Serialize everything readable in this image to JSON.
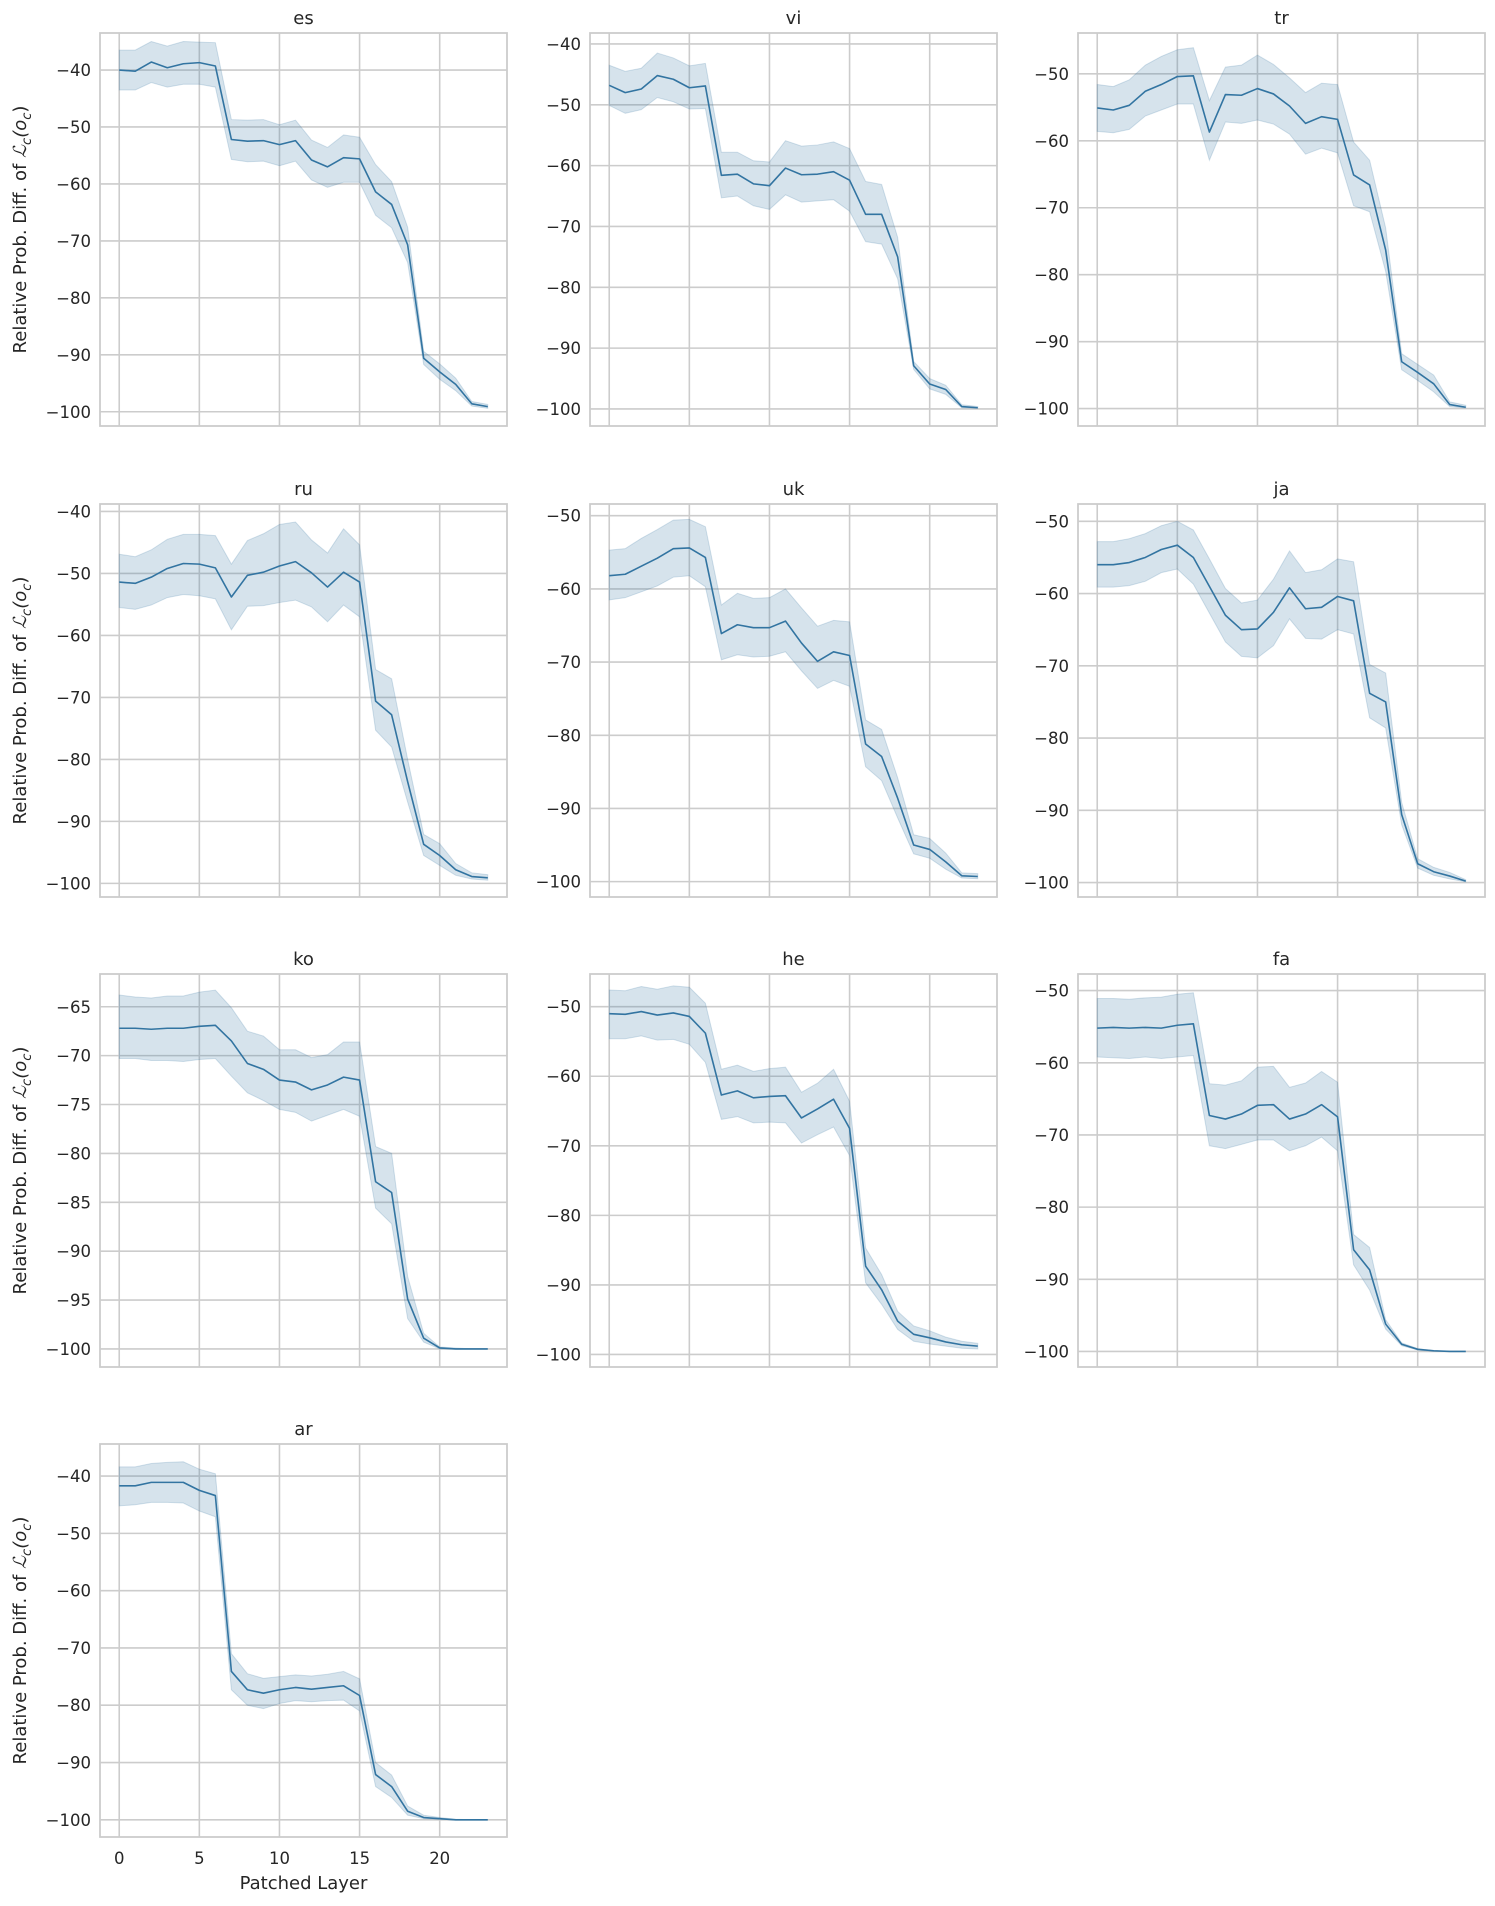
{
  "figure": {
    "xlabel": "Patched Layer",
    "ylabel_text": "Relative Prob. Diff. of ",
    "ylabel_math": "ℒ",
    "ylabel_sub": "c",
    "ylabel_arg_open": "(o",
    "ylabel_arg_sub": "c",
    "ylabel_arg_close": ")",
    "line_color": "#3274a1",
    "band_color": "#3274a1",
    "grid_color": "#cccccc",
    "sharex": true,
    "xlim": [
      -1.2,
      24.2
    ],
    "xticks": [
      0,
      5,
      10,
      15,
      20
    ]
  },
  "chart_data": [
    {
      "type": "line",
      "title": "es",
      "ylim": [
        -102.5,
        -33.5
      ],
      "yticks": [
        -100,
        -90,
        -80,
        -70,
        -60,
        -50,
        -40
      ],
      "x": [
        0,
        1,
        2,
        3,
        4,
        5,
        6,
        7,
        8,
        9,
        10,
        11,
        12,
        13,
        14,
        15,
        16,
        17,
        18,
        19,
        20,
        21,
        22,
        23
      ],
      "values": [
        -40.0,
        -40.2,
        -38.6,
        -39.6,
        -38.9,
        -38.7,
        -39.3,
        -52.2,
        -52.5,
        -52.4,
        -53.1,
        -52.4,
        -55.8,
        -57.0,
        -55.4,
        -55.6,
        -61.4,
        -63.6,
        -70.7,
        -90.6,
        -93.0,
        -95.2,
        -98.6,
        -99.1
      ],
      "ci_upper": [
        -36.5,
        -36.5,
        -35.0,
        -35.8,
        -35.0,
        -35.1,
        -35.2,
        -48.7,
        -48.8,
        -48.7,
        -49.6,
        -48.8,
        -52.3,
        -53.6,
        -51.4,
        -51.8,
        -56.6,
        -59.6,
        -67.6,
        -89.4,
        -91.6,
        -94.1,
        -98.2,
        -98.7
      ],
      "ci_lower": [
        -43.5,
        -43.5,
        -42.2,
        -43.0,
        -42.5,
        -42.5,
        -43.0,
        -55.7,
        -56.1,
        -56.0,
        -56.8,
        -56.0,
        -59.3,
        -60.6,
        -59.7,
        -59.7,
        -65.5,
        -67.7,
        -73.8,
        -91.7,
        -94.3,
        -96.3,
        -99.0,
        -99.4
      ]
    },
    {
      "type": "line",
      "title": "vi",
      "ylim": [
        -102.8,
        -38.2
      ],
      "yticks": [
        -100,
        -90,
        -80,
        -70,
        -60,
        -50,
        -40
      ],
      "x": [
        0,
        1,
        2,
        3,
        4,
        5,
        6,
        7,
        8,
        9,
        10,
        11,
        12,
        13,
        14,
        15,
        16,
        17,
        18,
        19,
        20,
        21,
        22,
        23
      ],
      "values": [
        -46.8,
        -48.0,
        -47.4,
        -45.2,
        -45.8,
        -47.2,
        -46.9,
        -61.6,
        -61.4,
        -63.0,
        -63.3,
        -60.4,
        -61.5,
        -61.4,
        -61.0,
        -62.4,
        -68.0,
        -68.0,
        -75.0,
        -92.9,
        -95.9,
        -96.8,
        -99.6,
        -99.8
      ],
      "ci_upper": [
        -43.5,
        -44.5,
        -44.0,
        -41.5,
        -42.3,
        -43.6,
        -43.2,
        -57.8,
        -57.8,
        -59.2,
        -59.4,
        -55.9,
        -56.8,
        -56.6,
        -56.1,
        -57.2,
        -62.6,
        -63.1,
        -71.8,
        -92.2,
        -95.0,
        -96.1,
        -99.3,
        -99.6
      ],
      "ci_lower": [
        -50.1,
        -51.4,
        -50.8,
        -48.8,
        -49.5,
        -50.7,
        -50.6,
        -65.3,
        -65.0,
        -66.6,
        -67.2,
        -64.8,
        -66.0,
        -65.8,
        -65.6,
        -67.5,
        -72.5,
        -72.9,
        -78.6,
        -93.5,
        -96.7,
        -97.6,
        -99.8,
        -99.9
      ]
    },
    {
      "type": "line",
      "title": "tr",
      "ylim": [
        -102.6,
        -43.9
      ],
      "yticks": [
        -100,
        -90,
        -80,
        -70,
        -60,
        -50
      ],
      "x": [
        0,
        1,
        2,
        3,
        4,
        5,
        6,
        7,
        8,
        9,
        10,
        11,
        12,
        13,
        14,
        15,
        16,
        17,
        18,
        19,
        20,
        21,
        22,
        23
      ],
      "values": [
        -55.1,
        -55.4,
        -54.7,
        -52.6,
        -51.6,
        -50.4,
        -50.3,
        -58.7,
        -53.1,
        -53.2,
        -52.2,
        -53.0,
        -54.8,
        -57.4,
        -56.4,
        -56.8,
        -65.1,
        -66.6,
        -76.3,
        -93.0,
        -94.6,
        -96.3,
        -99.4,
        -99.8
      ],
      "ci_upper": [
        -51.6,
        -51.9,
        -50.9,
        -48.7,
        -47.4,
        -46.4,
        -46.1,
        -54.0,
        -49.0,
        -48.7,
        -47.2,
        -48.6,
        -50.6,
        -52.8,
        -51.4,
        -51.6,
        -60.2,
        -62.9,
        -73.0,
        -91.8,
        -93.4,
        -95.0,
        -99.0,
        -99.5
      ],
      "ci_lower": [
        -58.6,
        -58.8,
        -58.3,
        -56.3,
        -55.4,
        -54.5,
        -54.5,
        -62.9,
        -57.2,
        -57.4,
        -56.9,
        -57.5,
        -59.0,
        -62.0,
        -61.1,
        -61.8,
        -69.7,
        -70.6,
        -79.5,
        -94.2,
        -95.8,
        -97.5,
        -99.7,
        -99.9
      ]
    },
    {
      "type": "line",
      "title": "ru",
      "ylim": [
        -102.2,
        -38.8
      ],
      "yticks": [
        -100,
        -90,
        -80,
        -70,
        -60,
        -50,
        -40
      ],
      "x": [
        0,
        1,
        2,
        3,
        4,
        5,
        6,
        7,
        8,
        9,
        10,
        11,
        12,
        13,
        14,
        15,
        16,
        17,
        18,
        19,
        20,
        21,
        22,
        23
      ],
      "values": [
        -51.4,
        -51.6,
        -50.6,
        -49.2,
        -48.4,
        -48.5,
        -49.1,
        -53.8,
        -50.3,
        -49.8,
        -48.8,
        -48.1,
        -49.9,
        -52.2,
        -49.8,
        -51.4,
        -70.6,
        -72.8,
        -83.6,
        -93.7,
        -95.5,
        -97.8,
        -98.9,
        -99.1
      ],
      "ci_upper": [
        -46.9,
        -47.3,
        -46.2,
        -44.5,
        -43.7,
        -43.7,
        -43.9,
        -48.5,
        -44.7,
        -43.6,
        -42.1,
        -41.7,
        -44.6,
        -46.7,
        -42.8,
        -45.4,
        -65.5,
        -67.0,
        -80.0,
        -92.1,
        -93.6,
        -96.8,
        -98.3,
        -98.6
      ],
      "ci_lower": [
        -55.5,
        -55.8,
        -55.1,
        -53.9,
        -53.4,
        -53.6,
        -54.1,
        -59.1,
        -55.3,
        -55.2,
        -54.7,
        -54.3,
        -55.4,
        -57.8,
        -55.1,
        -57.0,
        -75.3,
        -78.0,
        -86.9,
        -95.5,
        -97.1,
        -98.7,
        -99.3,
        -99.5
      ]
    },
    {
      "type": "line",
      "title": "uk",
      "ylim": [
        -102.1,
        -48.4
      ],
      "yticks": [
        -100,
        -90,
        -80,
        -70,
        -60,
        -50
      ],
      "x": [
        0,
        1,
        2,
        3,
        4,
        5,
        6,
        7,
        8,
        9,
        10,
        11,
        12,
        13,
        14,
        15,
        16,
        17,
        18,
        19,
        20,
        21,
        22,
        23
      ],
      "values": [
        -58.2,
        -58.0,
        -56.9,
        -55.8,
        -54.5,
        -54.4,
        -55.7,
        -66.1,
        -64.9,
        -65.3,
        -65.3,
        -64.4,
        -67.4,
        -69.9,
        -68.6,
        -69.1,
        -81.2,
        -82.9,
        -88.6,
        -95.0,
        -95.6,
        -97.3,
        -99.2,
        -99.3
      ],
      "ci_upper": [
        -54.7,
        -54.5,
        -53.1,
        -51.9,
        -50.6,
        -50.5,
        -51.5,
        -62.2,
        -60.6,
        -61.3,
        -61.2,
        -60.0,
        -62.6,
        -65.1,
        -64.3,
        -64.5,
        -77.9,
        -79.2,
        -85.8,
        -93.6,
        -94.1,
        -96.1,
        -98.8,
        -98.9
      ],
      "ci_lower": [
        -61.5,
        -61.2,
        -60.4,
        -59.6,
        -58.4,
        -58.2,
        -59.7,
        -69.7,
        -69.0,
        -69.3,
        -69.2,
        -68.6,
        -71.2,
        -73.6,
        -72.5,
        -73.3,
        -84.3,
        -86.2,
        -91.3,
        -96.2,
        -96.8,
        -98.3,
        -99.5,
        -99.6
      ]
    },
    {
      "type": "line",
      "title": "ja",
      "ylim": [
        -102.0,
        -47.6
      ],
      "yticks": [
        -100,
        -90,
        -80,
        -70,
        -60,
        -50
      ],
      "x": [
        0,
        1,
        2,
        3,
        4,
        5,
        6,
        7,
        8,
        9,
        10,
        11,
        12,
        13,
        14,
        15,
        16,
        17,
        18,
        19,
        20,
        21,
        22,
        23
      ],
      "values": [
        -56.0,
        -56.0,
        -55.7,
        -55.0,
        -53.9,
        -53.3,
        -55.0,
        -59.0,
        -63.0,
        -65.0,
        -64.9,
        -62.6,
        -59.2,
        -62.1,
        -61.9,
        -60.4,
        -61.0,
        -73.8,
        -75.0,
        -90.6,
        -97.4,
        -98.5,
        -99.1,
        -99.8
      ],
      "ci_upper": [
        -52.8,
        -52.8,
        -52.4,
        -51.7,
        -50.6,
        -50.0,
        -51.2,
        -55.2,
        -59.3,
        -61.3,
        -60.9,
        -58.0,
        -54.1,
        -57.1,
        -56.7,
        -55.2,
        -55.6,
        -69.8,
        -71.0,
        -88.9,
        -96.7,
        -97.9,
        -98.6,
        -99.6
      ],
      "ci_lower": [
        -59.1,
        -59.1,
        -58.9,
        -58.3,
        -57.1,
        -56.6,
        -58.7,
        -62.7,
        -66.7,
        -68.7,
        -68.9,
        -67.2,
        -63.5,
        -66.2,
        -66.3,
        -65.0,
        -65.6,
        -77.2,
        -78.6,
        -92.0,
        -98.0,
        -99.0,
        -99.5,
        -99.9
      ]
    },
    {
      "type": "line",
      "title": "ko",
      "ylim": [
        -101.85,
        -61.65
      ],
      "yticks": [
        -100,
        -95,
        -90,
        -85,
        -80,
        -75,
        -70,
        -65
      ],
      "x": [
        0,
        1,
        2,
        3,
        4,
        5,
        6,
        7,
        8,
        9,
        10,
        11,
        12,
        13,
        14,
        15,
        16,
        17,
        18,
        19,
        20,
        21,
        22,
        23
      ],
      "values": [
        -67.2,
        -67.2,
        -67.3,
        -67.2,
        -67.2,
        -67.0,
        -66.9,
        -68.5,
        -70.8,
        -71.4,
        -72.5,
        -72.7,
        -73.5,
        -73.0,
        -72.2,
        -72.5,
        -82.9,
        -84.0,
        -94.9,
        -98.9,
        -99.9,
        -100.0,
        -100.0,
        -100.0
      ],
      "ci_upper": [
        -63.8,
        -64.0,
        -64.1,
        -63.9,
        -63.9,
        -63.5,
        -63.3,
        -65.1,
        -67.5,
        -68.0,
        -69.4,
        -69.4,
        -70.2,
        -69.9,
        -68.6,
        -68.6,
        -79.3,
        -80.0,
        -92.6,
        -98.4,
        -99.8,
        -99.9,
        -100.0,
        -100.0
      ],
      "ci_lower": [
        -70.3,
        -70.3,
        -70.5,
        -70.5,
        -70.6,
        -70.4,
        -70.3,
        -72.1,
        -73.8,
        -74.6,
        -75.5,
        -75.8,
        -76.7,
        -76.1,
        -75.5,
        -76.2,
        -85.6,
        -87.2,
        -96.9,
        -99.3,
        -100.0,
        -100.0,
        -100.0,
        -100.0
      ]
    },
    {
      "type": "line",
      "title": "he",
      "ylim": [
        -101.8,
        -45.3
      ],
      "yticks": [
        -100,
        -90,
        -80,
        -70,
        -60,
        -50
      ],
      "x": [
        0,
        1,
        2,
        3,
        4,
        5,
        6,
        7,
        8,
        9,
        10,
        11,
        12,
        13,
        14,
        15,
        16,
        17,
        18,
        19,
        20,
        21,
        22,
        23
      ],
      "values": [
        -51.0,
        -51.1,
        -50.7,
        -51.2,
        -50.9,
        -51.4,
        -53.8,
        -62.7,
        -62.1,
        -63.1,
        -62.9,
        -62.8,
        -66.0,
        -64.7,
        -63.3,
        -67.5,
        -87.3,
        -90.7,
        -95.2,
        -97.1,
        -97.6,
        -98.2,
        -98.6,
        -98.8
      ],
      "ci_upper": [
        -47.6,
        -47.7,
        -47.1,
        -47.5,
        -47.0,
        -47.2,
        -49.5,
        -59.0,
        -58.4,
        -59.3,
        -58.9,
        -58.7,
        -62.3,
        -61.0,
        -59.0,
        -63.6,
        -84.7,
        -88.5,
        -93.8,
        -95.9,
        -96.6,
        -97.5,
        -98.1,
        -98.4
      ],
      "ci_lower": [
        -54.6,
        -54.6,
        -54.2,
        -54.8,
        -54.7,
        -55.4,
        -58.0,
        -66.2,
        -65.8,
        -66.7,
        -66.6,
        -66.7,
        -69.6,
        -68.4,
        -67.3,
        -71.4,
        -89.7,
        -92.8,
        -96.4,
        -98.1,
        -98.5,
        -98.8,
        -99.1,
        -99.2
      ]
    },
    {
      "type": "line",
      "title": "fa",
      "ylim": [
        -102.15,
        -47.7
      ],
      "yticks": [
        -100,
        -90,
        -80,
        -70,
        -60,
        -50
      ],
      "x": [
        0,
        1,
        2,
        3,
        4,
        5,
        6,
        7,
        8,
        9,
        10,
        11,
        12,
        13,
        14,
        15,
        16,
        17,
        18,
        19,
        20,
        21,
        22,
        23
      ],
      "values": [
        -55.2,
        -55.1,
        -55.2,
        -55.1,
        -55.2,
        -54.8,
        -54.6,
        -67.3,
        -67.8,
        -67.1,
        -65.9,
        -65.8,
        -67.8,
        -67.1,
        -65.8,
        -67.5,
        -85.9,
        -88.7,
        -96.2,
        -99.0,
        -99.7,
        -99.9,
        -100.0,
        -100.0
      ],
      "ci_upper": [
        -51.1,
        -51.1,
        -51.2,
        -51.0,
        -50.9,
        -50.5,
        -50.3,
        -62.9,
        -63.1,
        -62.5,
        -60.6,
        -60.5,
        -63.4,
        -62.8,
        -61.2,
        -62.7,
        -83.8,
        -85.6,
        -95.6,
        -98.8,
        -99.6,
        -99.9,
        -100.0,
        -100.0
      ],
      "ci_lower": [
        -59.2,
        -59.3,
        -59.4,
        -59.2,
        -59.4,
        -59.2,
        -59.0,
        -71.5,
        -71.9,
        -71.3,
        -70.7,
        -70.7,
        -72.2,
        -71.5,
        -70.3,
        -72.2,
        -88.0,
        -91.5,
        -96.9,
        -99.2,
        -99.8,
        -100.0,
        -100.0,
        -100.0
      ]
    },
    {
      "type": "line",
      "title": "ar",
      "ylim": [
        -103.0,
        -34.4
      ],
      "yticks": [
        -100,
        -90,
        -80,
        -70,
        -60,
        -50,
        -40
      ],
      "x": [
        0,
        1,
        2,
        3,
        4,
        5,
        6,
        7,
        8,
        9,
        10,
        11,
        12,
        13,
        14,
        15,
        16,
        17,
        18,
        19,
        20,
        21,
        22,
        23
      ],
      "values": [
        -41.7,
        -41.7,
        -41.1,
        -41.1,
        -41.1,
        -42.5,
        -43.4,
        -74.1,
        -77.3,
        -77.9,
        -77.3,
        -76.9,
        -77.2,
        -76.9,
        -76.6,
        -78.3,
        -92.1,
        -94.2,
        -98.5,
        -99.6,
        -99.8,
        -100.0,
        -100.0,
        -100.0
      ],
      "ci_upper": [
        -38.4,
        -38.4,
        -37.8,
        -37.6,
        -37.5,
        -38.8,
        -39.6,
        -71.0,
        -74.5,
        -75.3,
        -75.0,
        -74.7,
        -74.9,
        -74.6,
        -74.1,
        -75.4,
        -90.0,
        -92.2,
        -97.6,
        -99.2,
        -99.6,
        -99.9,
        -100.0,
        -100.0
      ],
      "ci_lower": [
        -45.2,
        -45.0,
        -44.6,
        -44.6,
        -44.7,
        -46.1,
        -47.1,
        -77.3,
        -80.0,
        -80.6,
        -79.7,
        -79.2,
        -79.4,
        -79.2,
        -79.1,
        -81.0,
        -94.2,
        -96.1,
        -99.2,
        -99.8,
        -99.9,
        -100.0,
        -100.0,
        -100.0
      ]
    }
  ]
}
